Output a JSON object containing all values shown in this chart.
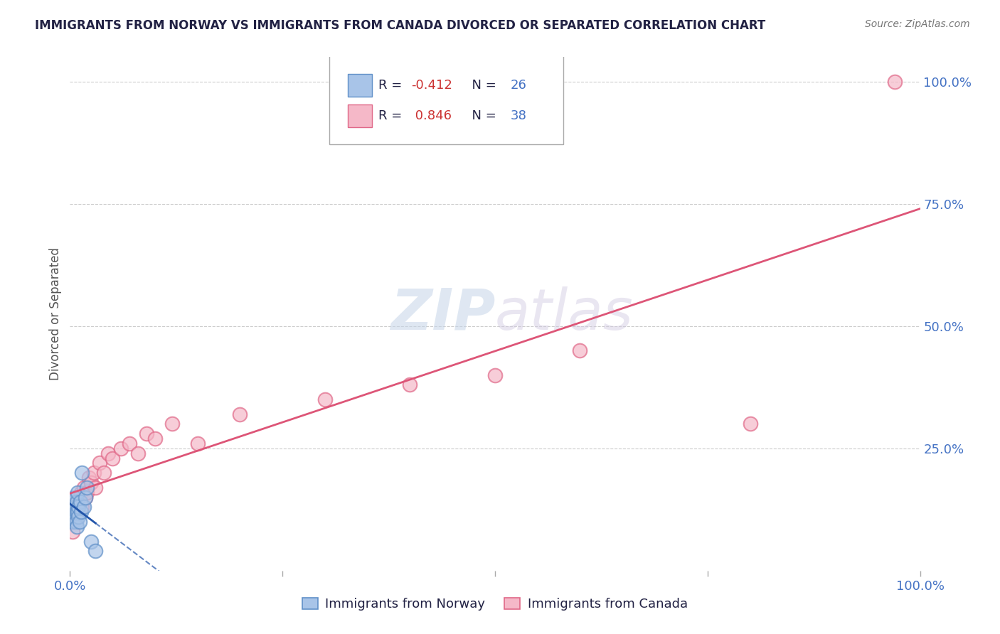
{
  "title": "IMMIGRANTS FROM NORWAY VS IMMIGRANTS FROM CANADA DIVORCED OR SEPARATED CORRELATION CHART",
  "source_text": "Source: ZipAtlas.com",
  "ylabel": "Divorced or Separated",
  "watermark_zip": "ZIP",
  "watermark_atlas": "atlas",
  "legend_blue_label": "Immigrants from Norway",
  "legend_pink_label": "Immigrants from Canada",
  "R_blue": -0.412,
  "N_blue": 26,
  "R_pink": 0.846,
  "N_pink": 38,
  "blue_scatter_color": "#a8c4e8",
  "blue_scatter_edge": "#6090c8",
  "pink_scatter_color": "#f5b8c8",
  "pink_scatter_edge": "#e06888",
  "blue_line_color": "#2255aa",
  "pink_line_color": "#dd5577",
  "axis_label_color": "#4472C4",
  "title_color": "#222244",
  "grid_color": "#cccccc",
  "background_color": "#ffffff",
  "xlim": [
    0.0,
    1.0
  ],
  "ylim": [
    0.0,
    1.05
  ],
  "blue_x": [
    0.002,
    0.003,
    0.003,
    0.004,
    0.004,
    0.005,
    0.005,
    0.006,
    0.006,
    0.007,
    0.007,
    0.008,
    0.008,
    0.009,
    0.009,
    0.01,
    0.01,
    0.011,
    0.012,
    0.013,
    0.014,
    0.016,
    0.018,
    0.02,
    0.025,
    0.03
  ],
  "blue_y": [
    0.13,
    0.11,
    0.14,
    0.1,
    0.13,
    0.12,
    0.15,
    0.11,
    0.13,
    0.1,
    0.12,
    0.14,
    0.09,
    0.12,
    0.16,
    0.11,
    0.13,
    0.1,
    0.14,
    0.12,
    0.2,
    0.13,
    0.15,
    0.17,
    0.06,
    0.04
  ],
  "pink_x": [
    0.002,
    0.003,
    0.004,
    0.005,
    0.006,
    0.007,
    0.008,
    0.009,
    0.01,
    0.011,
    0.012,
    0.013,
    0.014,
    0.016,
    0.018,
    0.02,
    0.022,
    0.025,
    0.028,
    0.03,
    0.035,
    0.04,
    0.045,
    0.05,
    0.06,
    0.07,
    0.08,
    0.09,
    0.1,
    0.12,
    0.15,
    0.2,
    0.3,
    0.4,
    0.5,
    0.6,
    0.8,
    0.97
  ],
  "pink_y": [
    0.1,
    0.08,
    0.12,
    0.11,
    0.13,
    0.12,
    0.15,
    0.14,
    0.13,
    0.15,
    0.14,
    0.16,
    0.13,
    0.17,
    0.15,
    0.16,
    0.19,
    0.18,
    0.2,
    0.17,
    0.22,
    0.2,
    0.24,
    0.23,
    0.25,
    0.26,
    0.24,
    0.28,
    0.27,
    0.3,
    0.26,
    0.32,
    0.35,
    0.38,
    0.4,
    0.45,
    0.3,
    1.0
  ],
  "figsize": [
    14.06,
    8.92
  ],
  "dpi": 100
}
